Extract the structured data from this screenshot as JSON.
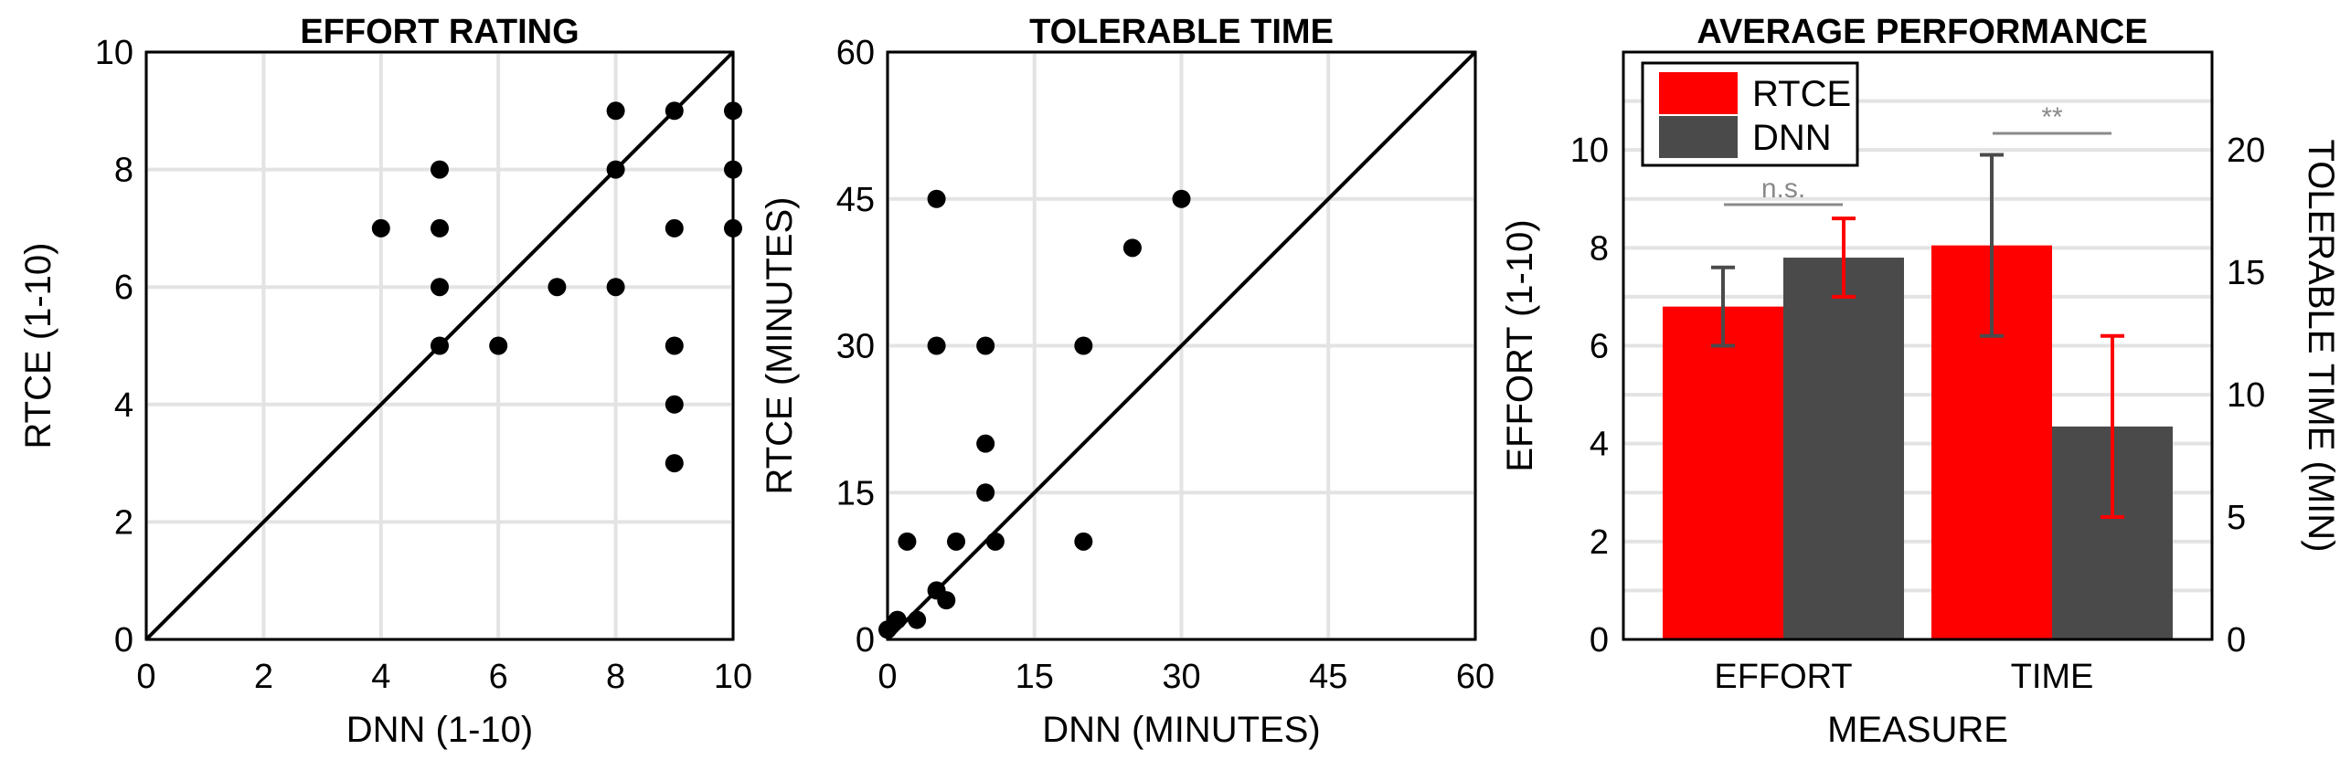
{
  "chart_data": [
    {
      "type": "scatter",
      "title": "EFFORT RATING",
      "xlabel": "DNN (1-10)",
      "ylabel": "RTCE (1-10)",
      "xlim": [
        0,
        10
      ],
      "ylim": [
        0,
        10
      ],
      "xticks": [
        "0",
        "2",
        "4",
        "6",
        "8",
        "10"
      ],
      "yticks": [
        "0",
        "2",
        "4",
        "6",
        "8",
        "10"
      ],
      "grid": true,
      "identity_line": true,
      "points": [
        {
          "x": 4,
          "y": 7
        },
        {
          "x": 5,
          "y": 8
        },
        {
          "x": 5,
          "y": 7
        },
        {
          "x": 5,
          "y": 6
        },
        {
          "x": 5,
          "y": 5
        },
        {
          "x": 6,
          "y": 5
        },
        {
          "x": 7,
          "y": 6
        },
        {
          "x": 8,
          "y": 9
        },
        {
          "x": 8,
          "y": 8
        },
        {
          "x": 8,
          "y": 6
        },
        {
          "x": 9,
          "y": 9
        },
        {
          "x": 9,
          "y": 7
        },
        {
          "x": 9,
          "y": 5
        },
        {
          "x": 9,
          "y": 4
        },
        {
          "x": 9,
          "y": 3
        },
        {
          "x": 10,
          "y": 9
        },
        {
          "x": 10,
          "y": 8
        },
        {
          "x": 10,
          "y": 7
        }
      ]
    },
    {
      "type": "scatter",
      "title": "TOLERABLE TIME",
      "xlabel": "DNN (MINUTES)",
      "ylabel": "RTCE (MINUTES)",
      "xlim": [
        0,
        60
      ],
      "ylim": [
        0,
        60
      ],
      "xticks": [
        "0",
        "15",
        "30",
        "45",
        "60"
      ],
      "yticks": [
        "0",
        "15",
        "30",
        "45",
        "60"
      ],
      "grid": true,
      "identity_line": true,
      "points": [
        {
          "x": 0,
          "y": 1
        },
        {
          "x": 1,
          "y": 2
        },
        {
          "x": 2,
          "y": 10
        },
        {
          "x": 3,
          "y": 2
        },
        {
          "x": 5,
          "y": 45
        },
        {
          "x": 5,
          "y": 30
        },
        {
          "x": 5,
          "y": 5
        },
        {
          "x": 6,
          "y": 4
        },
        {
          "x": 7,
          "y": 10
        },
        {
          "x": 10,
          "y": 30
        },
        {
          "x": 10,
          "y": 20
        },
        {
          "x": 10,
          "y": 15
        },
        {
          "x": 11,
          "y": 10
        },
        {
          "x": 20,
          "y": 30
        },
        {
          "x": 20,
          "y": 10
        },
        {
          "x": 25,
          "y": 40
        },
        {
          "x": 30,
          "y": 45
        }
      ]
    },
    {
      "type": "bar",
      "title": "AVERAGE PERFORMANCE",
      "xlabel": "MEASURE",
      "ylabel": "EFFORT (1-10)",
      "ylabel_right": "TOLERABLE TIME (MIN)",
      "categories": [
        "EFFORT",
        "TIME"
      ],
      "ylim": [
        0,
        12
      ],
      "yticks": [
        "0",
        "2",
        "4",
        "6",
        "8",
        "10"
      ],
      "ylim_right": [
        0,
        24
      ],
      "yticks_right": [
        "0",
        "5",
        "10",
        "15",
        "20"
      ],
      "legend_position": "top-left",
      "series": [
        {
          "name": "RTCE",
          "color": "#ff0000",
          "errcolor": "#4a4a4a",
          "values": [
            6.8,
            16.1
          ],
          "err_low": [
            6.0,
            12.4
          ],
          "err_high": [
            7.6,
            19.8
          ]
        },
        {
          "name": "DNN",
          "color": "#4a4a4a",
          "errcolor": "#ff0000",
          "values": [
            7.8,
            8.7
          ],
          "err_low": [
            7.0,
            5.0
          ],
          "err_high": [
            8.6,
            12.4
          ]
        }
      ],
      "axis_of_category": [
        "left",
        "right"
      ],
      "significance": [
        "n.s.",
        "**"
      ]
    }
  ]
}
